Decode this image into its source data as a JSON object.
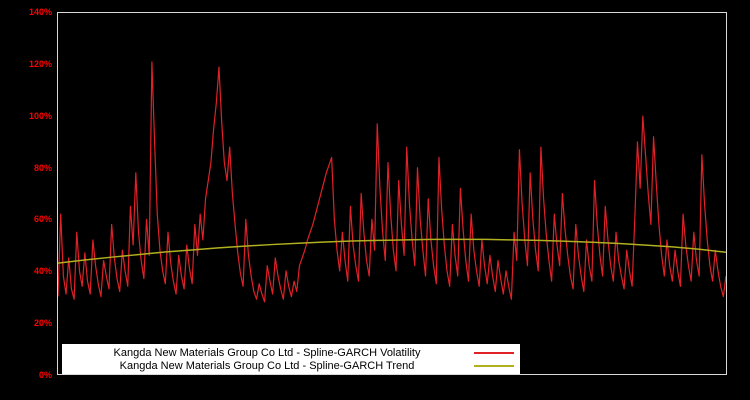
{
  "colors": {
    "background": "#000000",
    "frame": "#d9d9d9",
    "axis_label": "#ff0000",
    "volatility_line": "#e02128",
    "trend_line": "#b0b020",
    "legend_background": "#ffffff",
    "legend_text": "#000000"
  },
  "chart_data": {
    "type": "line",
    "title": "",
    "xlabel": "",
    "ylabel": "",
    "grid": false,
    "legend_position": "bottom-center",
    "y_axis": {
      "min": 0,
      "max": 140,
      "unit": "%",
      "tick_step": 20,
      "tick_labels": [
        "0%",
        "20%",
        "40%",
        "60%",
        "80%",
        "100%",
        "120%",
        "140%"
      ]
    },
    "x_axis": {
      "tick_labels": [],
      "note": "no visible x tick labels; series plotted over full width by index"
    },
    "series": [
      {
        "name": "Kangda New Materials Group Co Ltd - Spline-GARCH Volatility",
        "color": "#e02128",
        "unit": "%",
        "values": [
          30,
          62,
          38,
          31,
          45,
          33,
          29,
          55,
          40,
          34,
          47,
          36,
          31,
          52,
          42,
          35,
          30,
          44,
          38,
          33,
          58,
          45,
          37,
          32,
          48,
          40,
          34,
          65,
          50,
          78,
          55,
          44,
          37,
          60,
          46,
          121,
          90,
          62,
          48,
          40,
          35,
          55,
          43,
          36,
          31,
          46,
          38,
          33,
          50,
          41,
          35,
          58,
          46,
          62,
          52,
          68,
          75,
          82,
          95,
          105,
          119,
          98,
          82,
          75,
          88,
          70,
          58,
          47,
          39,
          34,
          60,
          46,
          38,
          32,
          29,
          35,
          31,
          28,
          42,
          36,
          31,
          45,
          38,
          33,
          29,
          40,
          34,
          30,
          36,
          32,
          42,
          45,
          48,
          52,
          55,
          58,
          62,
          66,
          70,
          74,
          78,
          81,
          84,
          60,
          48,
          40,
          55,
          44,
          36,
          65,
          50,
          42,
          36,
          70,
          55,
          44,
          38,
          60,
          48,
          97,
          72,
          55,
          44,
          82,
          62,
          48,
          40,
          75,
          58,
          46,
          88,
          66,
          52,
          42,
          80,
          60,
          48,
          38,
          68,
          52,
          42,
          35,
          84,
          64,
          50,
          40,
          34,
          58,
          46,
          38,
          72,
          56,
          44,
          36,
          62,
          48,
          40,
          34,
          52,
          42,
          35,
          46,
          38,
          32,
          44,
          37,
          31,
          40,
          34,
          29,
          55,
          44,
          87,
          66,
          52,
          42,
          78,
          60,
          48,
          40,
          88,
          68,
          54,
          44,
          36,
          62,
          50,
          42,
          70,
          56,
          46,
          38,
          33,
          58,
          46,
          38,
          32,
          52,
          42,
          36,
          75,
          58,
          46,
          38,
          65,
          52,
          42,
          36,
          55,
          44,
          38,
          33,
          48,
          40,
          34,
          60,
          90,
          72,
          100,
          85,
          70,
          58,
          92,
          74,
          58,
          46,
          38,
          52,
          42,
          36,
          48,
          40,
          34,
          62,
          50,
          42,
          36,
          55,
          44,
          38,
          85,
          66,
          52,
          42,
          36,
          48,
          40,
          34,
          30,
          38
        ]
      },
      {
        "name": "Kangda New Materials Group Co Ltd - Spline-GARCH Trend",
        "color": "#b0b020",
        "unit": "%",
        "values": [
          43.0,
          44.2,
          45.3,
          46.3,
          47.3,
          48.1,
          48.9,
          49.6,
          50.2,
          50.7,
          51.2,
          51.6,
          51.8,
          52.0,
          52.2,
          52.2,
          52.2,
          52.0,
          51.8,
          51.5,
          51.1,
          50.6,
          50.0,
          49.3,
          48.4,
          47.2
        ]
      }
    ]
  },
  "legend": {
    "items": [
      {
        "label": "Kangda New Materials Group Co Ltd - Spline-GARCH Volatility",
        "color": "#e02128"
      },
      {
        "label": "Kangda New Materials Group Co Ltd - Spline-GARCH Trend",
        "color": "#b0b020"
      }
    ]
  }
}
